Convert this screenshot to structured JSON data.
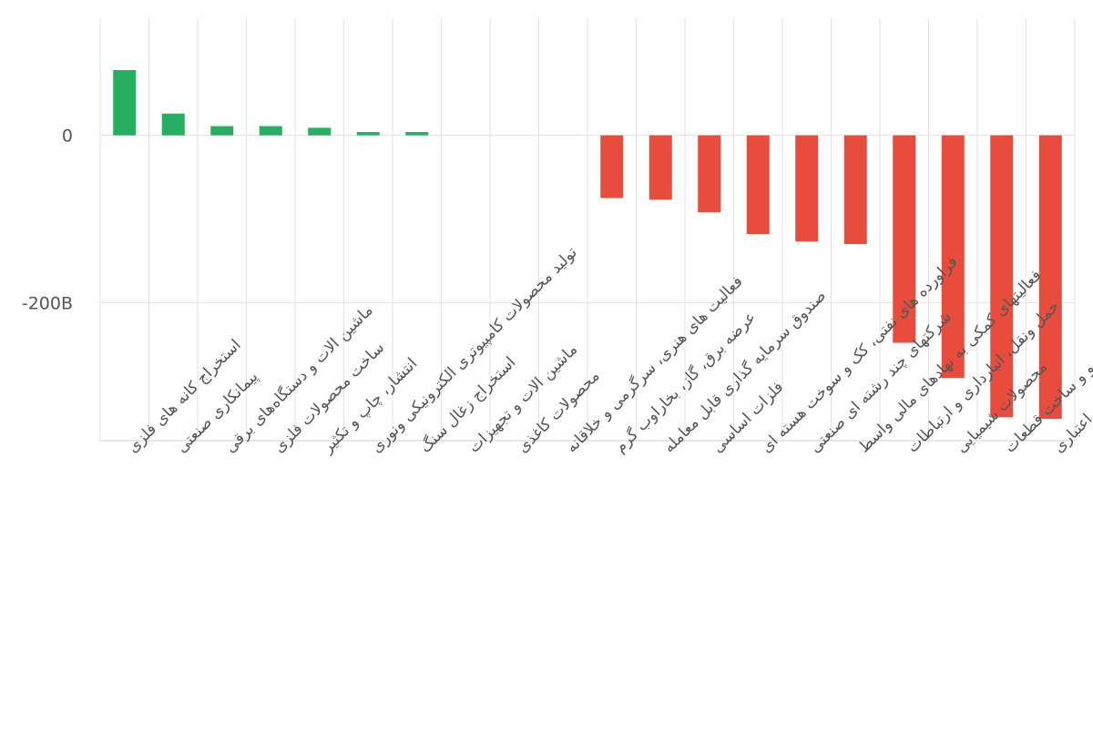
{
  "chart_data": {
    "type": "bar",
    "title": "",
    "xlabel": "",
    "ylabel": "",
    "ylim": [
      -365,
      140
    ],
    "y_ticks": [
      {
        "value": 0,
        "label": "0"
      },
      {
        "value": -200,
        "label": "-200B"
      }
    ],
    "grid": true,
    "legend": "none",
    "colors": {
      "positive": "#27ae60",
      "negative": "#e74c3c",
      "grid": "#e3e3e3",
      "tick_label": "#555555"
    },
    "categories": [
      "استخراج کانه های فلزی",
      "پیمانکاری صنعتی",
      "ماشین الات و دستگاه‌های برقی",
      "ساخت محصولات فلزی",
      "انتشار، چاپ و تکثیر",
      "تولید محصولات کامپیوتری الکترونیکی ونوری",
      "استخراج زغال سنگ",
      "ماشین الات و تجهیزات",
      "محصولات کاغذی",
      "فعالیت های هنری، سرگرمی و خلاقانه",
      "عرضه برق، گاز، بخاراوب گرم",
      "صندوق سرمایه گذاری قابل معامله",
      "فلزات اساسی",
      "فراورده های نفتی، کک و سوخت هسته ای",
      "شرکتهای چند رشته ای صنعتی",
      "فعالیتهای کمکی به نهادهای مالی واسط",
      "حمل ونقل، انبارداری و ارتباطات",
      "محصولات شیمیایی",
      "خودرو و ساخت قطعات",
      "بانکها و موسسات اعتباری"
    ],
    "values": [
      78,
      26,
      11,
      11,
      9,
      4,
      4,
      0,
      0,
      0,
      -75,
      -77,
      -92,
      -118,
      -127,
      -130,
      -248,
      -290,
      -337,
      -339
    ]
  }
}
